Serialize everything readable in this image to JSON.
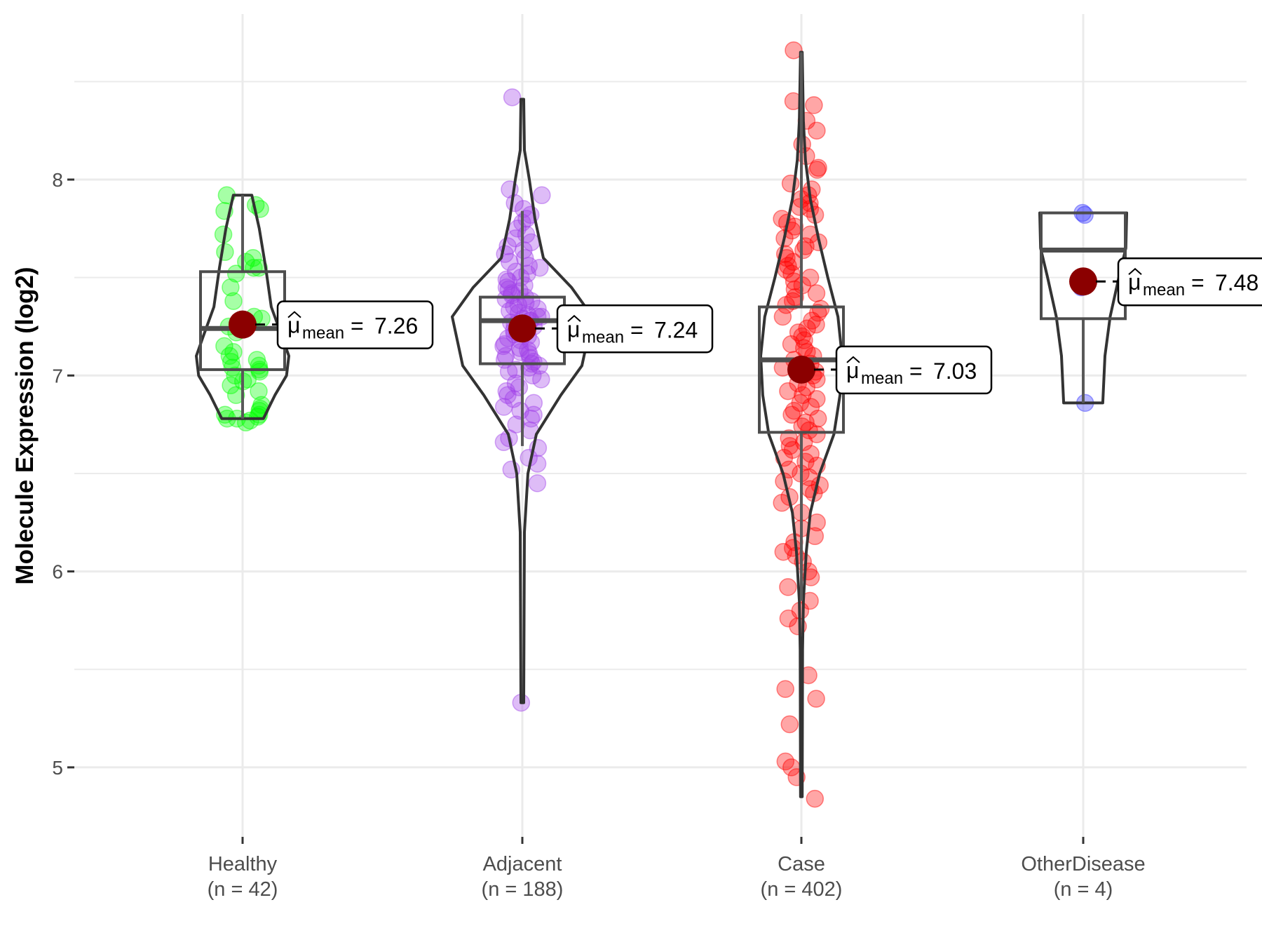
{
  "chart_data": {
    "type": "violin-box-jitter",
    "title": "",
    "xlabel": "",
    "ylabel": "Molecule Expression (log2)",
    "ylim": [
      4.65,
      8.8
    ],
    "yticks": [
      5,
      6,
      7,
      8
    ],
    "ytick_labels": [
      "5",
      "6",
      "7",
      "8"
    ],
    "grid": true,
    "legend": "none",
    "mean_dot_color": "#8b0000",
    "groups": [
      {
        "name": "Healthy",
        "n_label": "(n = 42)",
        "n": 42,
        "color": "#00ff00",
        "mean": 7.26,
        "mean_label": "7.26",
        "box": {
          "whisker_low": 6.78,
          "q1": 7.03,
          "median": 7.24,
          "q3": 7.53,
          "whisker_high": 7.92
        },
        "violin_range": [
          6.78,
          7.92
        ],
        "violin_profile": [
          [
            6.78,
            0.45
          ],
          [
            6.9,
            0.7
          ],
          [
            7.0,
            0.95
          ],
          [
            7.1,
            1.0
          ],
          [
            7.2,
            0.85
          ],
          [
            7.35,
            0.62
          ],
          [
            7.55,
            0.5
          ],
          [
            7.75,
            0.36
          ],
          [
            7.92,
            0.2
          ]
        ],
        "points": [
          7.92,
          7.87,
          7.85,
          7.84,
          7.72,
          7.63,
          7.6,
          7.58,
          7.55,
          7.55,
          7.52,
          7.45,
          7.38,
          7.3,
          7.29,
          7.25,
          7.22,
          7.15,
          7.12,
          7.1,
          7.08,
          7.07,
          7.05,
          7.04,
          7.03,
          7.02,
          7.0,
          6.98,
          6.97,
          6.95,
          6.92,
          6.9,
          6.85,
          6.83,
          6.82,
          6.8,
          6.8,
          6.79,
          6.78,
          6.78,
          6.77,
          6.76
        ]
      },
      {
        "name": "Adjacent",
        "n_label": "(n = 188)",
        "n": 188,
        "color": "#a040e8",
        "mean": 7.24,
        "mean_label": "7.24",
        "box": {
          "whisker_low": 6.64,
          "q1": 7.06,
          "median": 7.28,
          "q3": 7.4,
          "whisker_high": 7.84
        },
        "violin_range": [
          5.33,
          8.41
        ],
        "violin_profile": [
          [
            5.33,
            0.02
          ],
          [
            6.2,
            0.03
          ],
          [
            6.5,
            0.08
          ],
          [
            6.7,
            0.2
          ],
          [
            6.9,
            0.55
          ],
          [
            7.05,
            0.85
          ],
          [
            7.3,
            1.0
          ],
          [
            7.45,
            0.7
          ],
          [
            7.6,
            0.3
          ],
          [
            7.8,
            0.18
          ],
          [
            8.0,
            0.1
          ],
          [
            8.15,
            0.03
          ],
          [
            8.41,
            0.02
          ]
        ],
        "points": [
          8.42,
          7.95,
          7.92,
          7.88,
          7.85,
          7.82,
          7.8,
          7.78,
          7.75,
          7.72,
          7.7,
          7.68,
          7.66,
          7.64,
          7.62,
          7.6,
          7.58,
          7.56,
          7.55,
          7.53,
          7.52,
          7.5,
          7.49,
          7.48,
          7.46,
          7.45,
          7.44,
          7.43,
          7.42,
          7.41,
          7.4,
          7.39,
          7.38,
          7.37,
          7.36,
          7.35,
          7.34,
          7.33,
          7.32,
          7.31,
          7.3,
          7.3,
          7.29,
          7.28,
          7.28,
          7.27,
          7.26,
          7.25,
          7.25,
          7.24,
          7.23,
          7.22,
          7.21,
          7.2,
          7.19,
          7.18,
          7.17,
          7.16,
          7.15,
          7.14,
          7.13,
          7.12,
          7.11,
          7.1,
          7.09,
          7.08,
          7.07,
          7.06,
          7.05,
          7.04,
          7.03,
          7.02,
          7.0,
          6.98,
          6.96,
          6.94,
          6.92,
          6.9,
          6.88,
          6.86,
          6.84,
          6.82,
          6.8,
          6.78,
          6.75,
          6.72,
          6.68,
          6.66,
          6.63,
          6.58,
          6.55,
          6.52,
          6.45,
          5.33
        ]
      },
      {
        "name": "Case",
        "n_label": "(n = 402)",
        "n": 402,
        "color": "#ff0000",
        "mean": 7.03,
        "mean_label": "7.03",
        "box": {
          "whisker_low": 5.85,
          "q1": 6.71,
          "median": 7.08,
          "q3": 7.35,
          "whisker_high": 8.65
        },
        "violin_range": [
          4.85,
          8.65
        ],
        "violin_profile": [
          [
            4.85,
            0.02
          ],
          [
            5.6,
            0.03
          ],
          [
            5.85,
            0.05
          ],
          [
            6.1,
            0.12
          ],
          [
            6.3,
            0.22
          ],
          [
            6.5,
            0.45
          ],
          [
            6.7,
            0.8
          ],
          [
            6.9,
            0.95
          ],
          [
            7.1,
            1.0
          ],
          [
            7.3,
            0.9
          ],
          [
            7.5,
            0.65
          ],
          [
            7.7,
            0.42
          ],
          [
            7.9,
            0.22
          ],
          [
            8.1,
            0.1
          ],
          [
            8.3,
            0.05
          ],
          [
            8.65,
            0.02
          ]
        ],
        "points": [
          8.66,
          8.4,
          8.38,
          8.3,
          8.25,
          8.18,
          8.12,
          8.06,
          8.05,
          7.98,
          7.95,
          7.92,
          7.9,
          7.88,
          7.86,
          7.85,
          7.82,
          7.8,
          7.78,
          7.76,
          7.74,
          7.72,
          7.7,
          7.68,
          7.66,
          7.64,
          7.62,
          7.6,
          7.58,
          7.56,
          7.54,
          7.52,
          7.5,
          7.48,
          7.46,
          7.44,
          7.42,
          7.4,
          7.38,
          7.36,
          7.34,
          7.32,
          7.3,
          7.28,
          7.26,
          7.24,
          7.22,
          7.2,
          7.18,
          7.16,
          7.14,
          7.12,
          7.1,
          7.08,
          7.06,
          7.04,
          7.02,
          7.0,
          6.98,
          6.96,
          6.94,
          6.92,
          6.9,
          6.88,
          6.86,
          6.84,
          6.82,
          6.8,
          6.78,
          6.76,
          6.74,
          6.72,
          6.7,
          6.68,
          6.66,
          6.64,
          6.62,
          6.6,
          6.58,
          6.56,
          6.54,
          6.52,
          6.5,
          6.48,
          6.46,
          6.44,
          6.42,
          6.4,
          6.38,
          6.35,
          6.3,
          6.25,
          6.22,
          6.18,
          6.15,
          6.12,
          6.1,
          6.08,
          6.05,
          6.0,
          5.97,
          5.92,
          5.85,
          5.8,
          5.76,
          5.72,
          5.47,
          5.4,
          5.35,
          5.22,
          5.03,
          5.0,
          4.95,
          4.84
        ]
      },
      {
        "name": "OtherDisease",
        "n_label": "(n = 4)",
        "n": 4,
        "color": "#3030ff",
        "mean": 7.48,
        "mean_label": "7.48",
        "box": {
          "whisker_low": 6.86,
          "q1": 7.29,
          "median": 7.64,
          "q3": 7.83,
          "whisker_high": 7.83
        },
        "violin_range": [
          6.86,
          7.83
        ],
        "violin_profile": [
          [
            6.86,
            0.45
          ],
          [
            7.1,
            0.5
          ],
          [
            7.3,
            0.62
          ],
          [
            7.5,
            0.82
          ],
          [
            7.65,
            0.98
          ],
          [
            7.83,
            1.0
          ]
        ],
        "points": [
          7.83,
          7.82,
          7.45,
          6.86
        ]
      }
    ],
    "annotations": [
      {
        "group": "Healthy",
        "symbol": "μ̂",
        "subscript": "mean",
        "text": "= 7.26"
      },
      {
        "group": "Adjacent",
        "symbol": "μ̂",
        "subscript": "mean",
        "text": "= 7.24"
      },
      {
        "group": "Case",
        "symbol": "μ̂",
        "subscript": "mean",
        "text": "= 7.03"
      },
      {
        "group": "OtherDisease",
        "symbol": "μ̂",
        "subscript": "mean",
        "text": "= 7.48"
      }
    ]
  }
}
